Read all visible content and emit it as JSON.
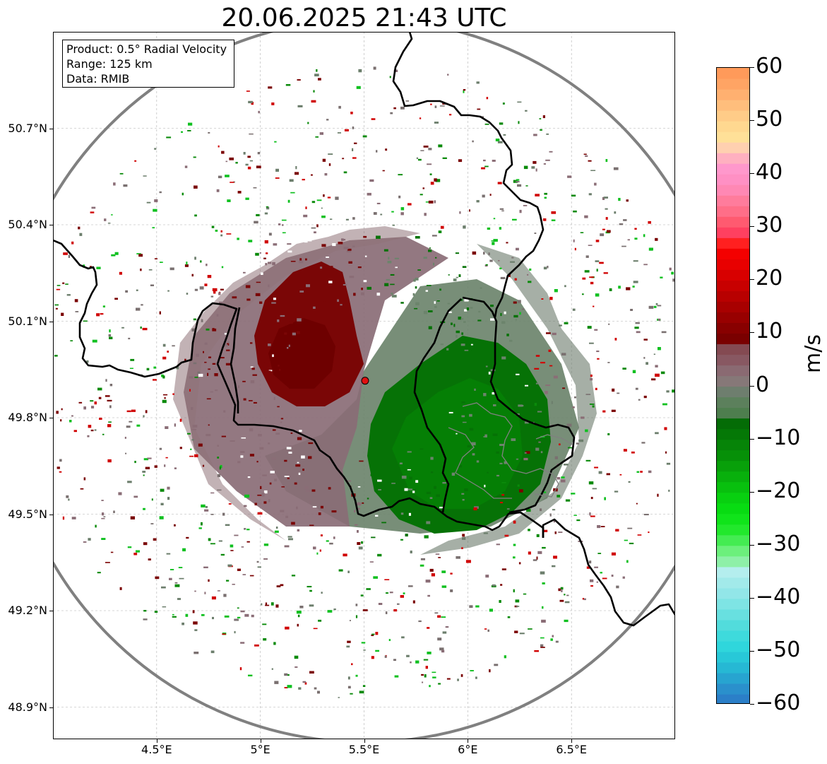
{
  "title": "20.06.2025 21:43 UTC",
  "info": {
    "product": "Product: 0.5° Radial Velocity",
    "range": "Range: 125 km",
    "data": "Data: RMIB"
  },
  "map": {
    "lon_range": [
      4.0,
      7.0
    ],
    "lat_range": [
      48.8,
      51.0
    ],
    "radar_site": {
      "lon": 5.505,
      "lat": 49.915
    },
    "range_ring_km": 125,
    "lat_ticks": [
      {
        "value": 50.7,
        "label": "50.7°N"
      },
      {
        "value": 50.4,
        "label": "50.4°N"
      },
      {
        "value": 50.1,
        "label": "50.1°N"
      },
      {
        "value": 49.8,
        "label": "49.8°N"
      },
      {
        "value": 49.5,
        "label": "49.5°N"
      },
      {
        "value": 49.2,
        "label": "49.2°N"
      },
      {
        "value": 48.9,
        "label": "48.9°N"
      }
    ],
    "lon_ticks": [
      {
        "value": 4.5,
        "label": "4.5°E"
      },
      {
        "value": 5.0,
        "label": "5°E"
      },
      {
        "value": 5.5,
        "label": "5.5°E"
      },
      {
        "value": 6.0,
        "label": "6°E"
      },
      {
        "value": 6.5,
        "label": "6.5°E"
      }
    ],
    "colors": {
      "range_ring": "#808080",
      "border": "#000000",
      "gridline": "#b0b0b0",
      "site_marker": "#e01010"
    },
    "velocity_regions": [
      {
        "name": "outbound-max",
        "color": "#780000",
        "center": [
          5.22,
          49.98
        ],
        "lon_radius": 0.28,
        "lat_radius": 0.14
      },
      {
        "name": "outbound-core",
        "color": "#8a1010",
        "center": [
          5.3,
          50.12
        ],
        "lon_radius": 0.22,
        "lat_radius": 0.12
      },
      {
        "name": "inbound-max",
        "color": "#047004",
        "center": [
          6.05,
          49.74
        ],
        "lon_radius": 0.34,
        "lat_radius": 0.19
      },
      {
        "name": "inbound-core",
        "color": "#0a7a0a",
        "center": [
          5.82,
          49.62
        ],
        "lon_radius": 0.26,
        "lat_radius": 0.12
      }
    ]
  },
  "colorbar": {
    "label": "m/s",
    "min": -60,
    "max": 60,
    "ticks": [
      {
        "value": 60,
        "label": "60"
      },
      {
        "value": 50,
        "label": "50"
      },
      {
        "value": 40,
        "label": "40"
      },
      {
        "value": 30,
        "label": "30"
      },
      {
        "value": 20,
        "label": "20"
      },
      {
        "value": 10,
        "label": "10"
      },
      {
        "value": 0,
        "label": "0"
      },
      {
        "value": -10,
        "label": "−10"
      },
      {
        "value": -20,
        "label": "−20"
      },
      {
        "value": -30,
        "label": "−30"
      },
      {
        "value": -40,
        "label": "−40"
      },
      {
        "value": -50,
        "label": "−50"
      },
      {
        "value": -60,
        "label": "−60"
      }
    ],
    "bins": [
      {
        "from": -60,
        "to": -58,
        "color": "#2b7fc8"
      },
      {
        "from": -58,
        "to": -56,
        "color": "#2a90cc"
      },
      {
        "from": -56,
        "to": -54,
        "color": "#27a4d0"
      },
      {
        "from": -54,
        "to": -52,
        "color": "#26b8d4"
      },
      {
        "from": -52,
        "to": -50,
        "color": "#28c8d8"
      },
      {
        "from": -50,
        "to": -48,
        "color": "#2fd6dc"
      },
      {
        "from": -48,
        "to": -46,
        "color": "#3edadc"
      },
      {
        "from": -46,
        "to": -44,
        "color": "#52dcdc"
      },
      {
        "from": -44,
        "to": -42,
        "color": "#68e0e0"
      },
      {
        "from": -42,
        "to": -40,
        "color": "#7ee4e4"
      },
      {
        "from": -40,
        "to": -38,
        "color": "#92e6e8"
      },
      {
        "from": -38,
        "to": -36,
        "color": "#a2eaea"
      },
      {
        "from": -36,
        "to": -34,
        "color": "#b4eeee"
      },
      {
        "from": -34,
        "to": -32,
        "color": "#8ef0a8"
      },
      {
        "from": -32,
        "to": -30,
        "color": "#6cf07c"
      },
      {
        "from": -30,
        "to": -28,
        "color": "#44ec52"
      },
      {
        "from": -28,
        "to": -26,
        "color": "#22e82c"
      },
      {
        "from": -26,
        "to": -24,
        "color": "#10e41a"
      },
      {
        "from": -24,
        "to": -22,
        "color": "#08dc12"
      },
      {
        "from": -22,
        "to": -20,
        "color": "#08d010"
      },
      {
        "from": -20,
        "to": -18,
        "color": "#08c00e"
      },
      {
        "from": -18,
        "to": -16,
        "color": "#08b00c"
      },
      {
        "from": -16,
        "to": -14,
        "color": "#08a00a"
      },
      {
        "from": -14,
        "to": -12,
        "color": "#069008"
      },
      {
        "from": -12,
        "to": -10,
        "color": "#068408"
      },
      {
        "from": -10,
        "to": -8,
        "color": "#057806"
      },
      {
        "from": -8,
        "to": -6,
        "color": "#046c06"
      },
      {
        "from": -6,
        "to": -4,
        "color": "#4e7e4e"
      },
      {
        "from": -4,
        "to": -2,
        "color": "#5c805c"
      },
      {
        "from": -2,
        "to": 0,
        "color": "#6e7e6e"
      },
      {
        "from": 0,
        "to": 2,
        "color": "#867878"
      },
      {
        "from": 2,
        "to": 4,
        "color": "#8a6a72"
      },
      {
        "from": 4,
        "to": 6,
        "color": "#885862"
      },
      {
        "from": 6,
        "to": 8,
        "color": "#844a52"
      },
      {
        "from": 8,
        "to": 10,
        "color": "#7a0000"
      },
      {
        "from": 10,
        "to": 12,
        "color": "#880000"
      },
      {
        "from": 12,
        "to": 14,
        "color": "#980000"
      },
      {
        "from": 14,
        "to": 16,
        "color": "#a80000"
      },
      {
        "from": 16,
        "to": 18,
        "color": "#b80000"
      },
      {
        "from": 18,
        "to": 20,
        "color": "#c80000"
      },
      {
        "from": 20,
        "to": 22,
        "color": "#d80000"
      },
      {
        "from": 22,
        "to": 24,
        "color": "#e80000"
      },
      {
        "from": 24,
        "to": 26,
        "color": "#f40000"
      },
      {
        "from": 26,
        "to": 28,
        "color": "#ff2020"
      },
      {
        "from": 28,
        "to": 30,
        "color": "#ff4060"
      },
      {
        "from": 30,
        "to": 32,
        "color": "#ff5a70"
      },
      {
        "from": 32,
        "to": 34,
        "color": "#ff6e88"
      },
      {
        "from": 34,
        "to": 36,
        "color": "#ff7c9c"
      },
      {
        "from": 36,
        "to": 38,
        "color": "#ff88b4"
      },
      {
        "from": 38,
        "to": 40,
        "color": "#ff90c4"
      },
      {
        "from": 40,
        "to": 42,
        "color": "#ff98cc"
      },
      {
        "from": 42,
        "to": 44,
        "color": "#ffb0c0"
      },
      {
        "from": 44,
        "to": 46,
        "color": "#ffd0b0"
      },
      {
        "from": 46,
        "to": 48,
        "color": "#ffe098"
      },
      {
        "from": 48,
        "to": 50,
        "color": "#ffd890"
      },
      {
        "from": 50,
        "to": 52,
        "color": "#ffcc88"
      },
      {
        "from": 52,
        "to": 54,
        "color": "#ffbe7c"
      },
      {
        "from": 54,
        "to": 56,
        "color": "#ffb070"
      },
      {
        "from": 56,
        "to": 58,
        "color": "#ffa464"
      },
      {
        "from": 58,
        "to": 60,
        "color": "#ff9a5a"
      }
    ]
  }
}
